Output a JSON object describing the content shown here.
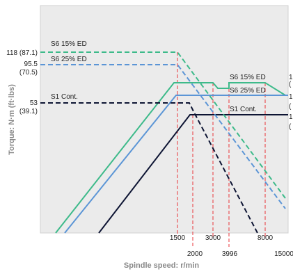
{
  "chart_data": {
    "type": "line",
    "xlabel": "Spindle speed: r/min",
    "ylabel": "Torque: N·m (ft·lbs)",
    "x_ticks_upper": [
      "1500",
      "3000",
      "8000"
    ],
    "x_ticks_lower": [
      "2000",
      "3996",
      "15000"
    ],
    "y_ticks": [
      {
        "value": 118,
        "label": "118 (87.1)"
      },
      {
        "value": 95.5,
        "label_top": "95.5",
        "label_bottom": "(70.5)"
      },
      {
        "value": 53,
        "label_top": "53",
        "label_bottom": "(39.1)"
      }
    ],
    "right_labels_partial": [
      "1",
      "(",
      "1",
      "(",
      "1",
      "("
    ],
    "grid": false,
    "background": "#ebebeb",
    "series": [
      {
        "name": "S6 15% ED",
        "style": "dashed",
        "color": "#3dba8a"
      },
      {
        "name": "S6 25% ED",
        "style": "dashed",
        "color": "#5b95d6"
      },
      {
        "name": "S1 Cont.",
        "style": "dashed",
        "color": "#0d1433"
      },
      {
        "name": "S6 15% ED",
        "style": "solid",
        "color": "#3dba8a"
      },
      {
        "name": "S6 25% ED",
        "style": "solid",
        "color": "#5b95d6"
      },
      {
        "name": "S1 Cont.",
        "style": "solid",
        "color": "#0d1433"
      }
    ],
    "guide_color": "#e8343a"
  }
}
